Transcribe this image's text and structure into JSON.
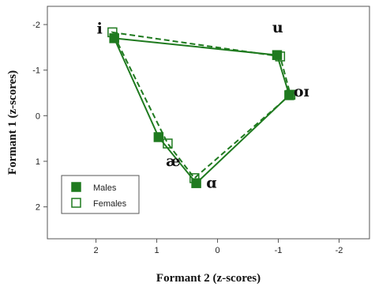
{
  "chart_data": {
    "type": "scatter",
    "xlabel": "Formant 2 (z-scores)",
    "ylabel": "Formant 1 (z-scores)",
    "xlim": [
      2.8,
      -2.5
    ],
    "ylim": [
      -2.4,
      2.7
    ],
    "xticks": [
      2,
      1,
      0,
      -1,
      -2
    ],
    "yticks": [
      -2,
      -1,
      0,
      1,
      2
    ],
    "x_reversed": true,
    "y_reversed": true,
    "legend_position": "bottom-left",
    "polygon_order": [
      "i",
      "u",
      "oɪ",
      "ɑ",
      "æ"
    ],
    "series": [
      {
        "name": "Males",
        "marker": "filled-square",
        "line": "solid",
        "color": "#1f7a1f",
        "points": [
          {
            "vowel": "i",
            "x": 1.7,
            "y": -1.7
          },
          {
            "vowel": "u",
            "x": -0.98,
            "y": -1.33
          },
          {
            "vowel": "oɪ",
            "x": -1.18,
            "y": -0.45
          },
          {
            "vowel": "ɑ",
            "x": 0.35,
            "y": 1.48
          },
          {
            "vowel": "æ",
            "x": 0.97,
            "y": 0.47
          }
        ]
      },
      {
        "name": "Females",
        "marker": "open-square",
        "line": "dashed",
        "color": "#1f7a1f",
        "points": [
          {
            "vowel": "i",
            "x": 1.73,
            "y": -1.83
          },
          {
            "vowel": "u",
            "x": -1.03,
            "y": -1.3
          },
          {
            "vowel": "oɪ",
            "x": -1.2,
            "y": -0.46
          },
          {
            "vowel": "ɑ",
            "x": 0.38,
            "y": 1.37
          },
          {
            "vowel": "æ",
            "x": 0.82,
            "y": 0.61
          }
        ]
      }
    ],
    "vowel_labels": [
      {
        "text": "i",
        "x": 1.94,
        "y": -1.8
      },
      {
        "text": "u",
        "x": -0.99,
        "y": -1.83
      },
      {
        "text": "oɪ",
        "x": -1.38,
        "y": -0.42
      },
      {
        "text": "ɑ",
        "x": 0.1,
        "y": 1.58
      },
      {
        "text": "æ",
        "x": 0.73,
        "y": 1.1
      }
    ]
  }
}
